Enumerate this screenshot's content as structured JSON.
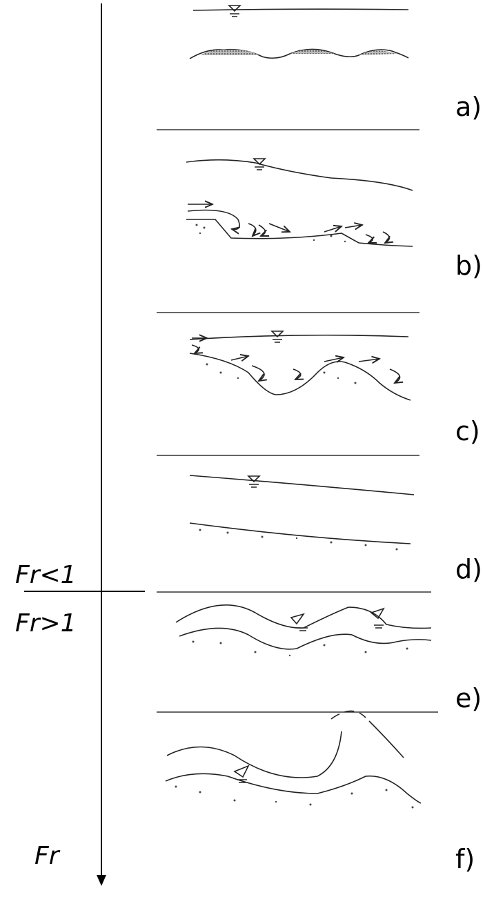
{
  "panels": [
    "a)",
    "b)",
    "c)",
    "d)",
    "e)",
    "f)"
  ],
  "froude": {
    "subcritical": "Fr<1",
    "supercritical": "Fr>1",
    "axis": "Fr"
  }
}
